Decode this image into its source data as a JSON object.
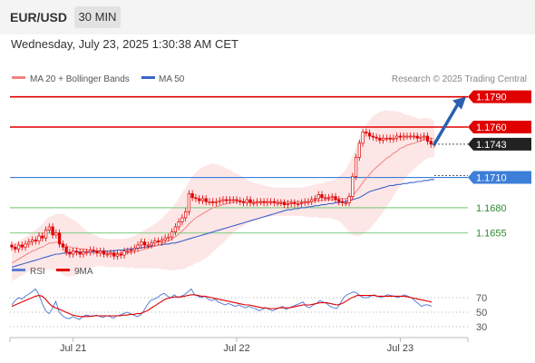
{
  "header": {
    "symbol": "EUR/USD",
    "timeframe": "30 MIN",
    "datetime": "Wednesday, July 23, 2025 1:30:38 AM CET"
  },
  "legend": {
    "ma20": "MA 20 + Bollinger Bands",
    "ma50": "MA 50",
    "credit": "Research © 2025 Trading Central"
  },
  "colors": {
    "resistance": "#e00000",
    "support": "#8ccf8c",
    "pivot": "#3c7ed8",
    "ma20": "#f08080",
    "ma50": "#3c64c8",
    "bollinger_fill": "#fde3e3",
    "candle": "#e00000",
    "last_price": "#222222"
  },
  "chart_data": [
    {
      "type": "candlestick",
      "title": "EUR/USD",
      "levels": [
        {
          "label": "1.1790",
          "value": 1.179,
          "kind": "resistance"
        },
        {
          "label": "1.1760",
          "value": 1.176,
          "kind": "resistance"
        },
        {
          "label": "1.1743",
          "value": 1.1743,
          "kind": "last"
        },
        {
          "label": "1.1710",
          "value": 1.171,
          "kind": "pivot"
        },
        {
          "label": "1.1680",
          "value": 1.168,
          "kind": "support"
        },
        {
          "label": "1.1655",
          "value": 1.1655,
          "kind": "support"
        }
      ],
      "x_tick_labels": [
        "Jul 21",
        "Jul 22",
        "Jul 23"
      ],
      "x_tick_positions": [
        18,
        66,
        114
      ],
      "bar_count": 125,
      "ylim": [
        1.1625,
        1.1805
      ],
      "close": [
        1.1641,
        1.1639,
        1.1643,
        1.1641,
        1.1644,
        1.1646,
        1.1648,
        1.1647,
        1.1652,
        1.165,
        1.1658,
        1.1661,
        1.1653,
        1.1655,
        1.1644,
        1.1641,
        1.1636,
        1.1634,
        1.1637,
        1.1636,
        1.1634,
        1.1636,
        1.1636,
        1.1638,
        1.1637,
        1.1635,
        1.1637,
        1.1634,
        1.1634,
        1.1635,
        1.1632,
        1.1634,
        1.1633,
        1.1637,
        1.1637,
        1.1638,
        1.164,
        1.1643,
        1.1646,
        1.1643,
        1.1643,
        1.1645,
        1.1647,
        1.1646,
        1.1648,
        1.165,
        1.1651,
        1.1656,
        1.1661,
        1.1666,
        1.167,
        1.1676,
        1.1694,
        1.169,
        1.1689,
        1.1687,
        1.1689,
        1.1686,
        1.1686,
        1.1685,
        1.1686,
        1.1687,
        1.1688,
        1.1687,
        1.1688,
        1.1688,
        1.1687,
        1.1686,
        1.1685,
        1.1688,
        1.1685,
        1.1685,
        1.1686,
        1.1686,
        1.1685,
        1.1686,
        1.1686,
        1.1685,
        1.1685,
        1.1685,
        1.1683,
        1.1684,
        1.1685,
        1.1684,
        1.1684,
        1.1685,
        1.1686,
        1.1686,
        1.1688,
        1.1689,
        1.1693,
        1.169,
        1.169,
        1.169,
        1.1691,
        1.1688,
        1.1686,
        1.1685,
        1.1685,
        1.1691,
        1.1711,
        1.173,
        1.1744,
        1.1755,
        1.1754,
        1.1751,
        1.175,
        1.1749,
        1.1747,
        1.1749,
        1.1749,
        1.1748,
        1.1749,
        1.1751,
        1.175,
        1.1751,
        1.1751,
        1.1751,
        1.1751,
        1.1749,
        1.175,
        1.1751,
        1.1746,
        1.1743,
        1.1743
      ],
      "ma20": [
        1.1625,
        1.1627,
        1.1629,
        1.1631,
        1.1633,
        1.1635,
        1.1637,
        1.1638,
        1.164,
        1.1641,
        1.1643,
        1.1645,
        1.1645,
        1.1646,
        1.1645,
        1.1644,
        1.1642,
        1.1641,
        1.164,
        1.164,
        1.1639,
        1.1639,
        1.1638,
        1.1638,
        1.1637,
        1.1637,
        1.1636,
        1.1636,
        1.1635,
        1.1635,
        1.1635,
        1.1635,
        1.1635,
        1.1635,
        1.1635,
        1.1636,
        1.1636,
        1.1637,
        1.1638,
        1.1639,
        1.164,
        1.1641,
        1.1642,
        1.1643,
        1.1644,
        1.1646,
        1.1647,
        1.1649,
        1.1651,
        1.1654,
        1.1657,
        1.166,
        1.1664,
        1.1667,
        1.167,
        1.1672,
        1.1674,
        1.1676,
        1.1678,
        1.168,
        1.1681,
        1.1682,
        1.1683,
        1.1684,
        1.1685,
        1.1685,
        1.1686,
        1.1686,
        1.1686,
        1.1686,
        1.1686,
        1.1686,
        1.1686,
        1.1686,
        1.1686,
        1.1686,
        1.1686,
        1.1686,
        1.1686,
        1.1686,
        1.1686,
        1.1686,
        1.1686,
        1.1686,
        1.1686,
        1.1686,
        1.1686,
        1.1686,
        1.1686,
        1.1687,
        1.1687,
        1.1687,
        1.1688,
        1.1688,
        1.1688,
        1.1688,
        1.1689,
        1.1689,
        1.1689,
        1.169,
        1.1692,
        1.1696,
        1.17,
        1.1705,
        1.1709,
        1.1713,
        1.1717,
        1.172,
        1.1723,
        1.1726,
        1.1729,
        1.1731,
        1.1734,
        1.1736,
        1.1739,
        1.174,
        1.1742,
        1.1743,
        1.1744,
        1.1745,
        1.1746,
        1.1748,
        1.1749,
        1.1749,
        1.1748
      ],
      "ma50": [
        1.1621,
        1.1622,
        1.1623,
        1.1624,
        1.1625,
        1.1626,
        1.1627,
        1.1628,
        1.1629,
        1.163,
        1.1631,
        1.1632,
        1.1633,
        1.1634,
        1.1634,
        1.1635,
        1.1635,
        1.1635,
        1.1636,
        1.1636,
        1.1636,
        1.1636,
        1.1636,
        1.1636,
        1.1636,
        1.1637,
        1.1637,
        1.1637,
        1.1637,
        1.1637,
        1.1637,
        1.1638,
        1.1638,
        1.1638,
        1.1639,
        1.1639,
        1.1639,
        1.164,
        1.164,
        1.1641,
        1.1641,
        1.1642,
        1.1642,
        1.1643,
        1.1643,
        1.1644,
        1.1644,
        1.1645,
        1.1645,
        1.1646,
        1.1647,
        1.1648,
        1.1649,
        1.165,
        1.1651,
        1.1652,
        1.1653,
        1.1654,
        1.1655,
        1.1656,
        1.1657,
        1.1658,
        1.1659,
        1.166,
        1.1661,
        1.1662,
        1.1663,
        1.1664,
        1.1665,
        1.1666,
        1.1667,
        1.1668,
        1.1669,
        1.167,
        1.1671,
        1.1672,
        1.1673,
        1.1674,
        1.1675,
        1.1676,
        1.1677,
        1.1678,
        1.1678,
        1.1679,
        1.1679,
        1.168,
        1.168,
        1.1681,
        1.1681,
        1.1682,
        1.1682,
        1.1683,
        1.1683,
        1.1684,
        1.1684,
        1.1685,
        1.1685,
        1.1686,
        1.1686,
        1.1687,
        1.1688,
        1.1689,
        1.169,
        1.1692,
        1.1694,
        1.1696,
        1.1697,
        1.1698,
        1.1699,
        1.17,
        1.1701,
        1.1702,
        1.1702,
        1.1703,
        1.1703,
        1.1704,
        1.1704,
        1.1705,
        1.1705,
        1.1706,
        1.1706,
        1.1707,
        1.1707,
        1.1708,
        1.1708
      ],
      "bollinger_width": [
        0.0018,
        0.0018,
        0.0018,
        0.0018,
        0.0018,
        0.0018,
        0.0019,
        0.002,
        0.0021,
        0.0023,
        0.0025,
        0.0026,
        0.0027,
        0.0028,
        0.0029,
        0.003,
        0.003,
        0.0029,
        0.0028,
        0.0026,
        0.0024,
        0.0021,
        0.0019,
        0.0017,
        0.0016,
        0.0015,
        0.0014,
        0.0014,
        0.0014,
        0.0014,
        0.0014,
        0.0014,
        0.0014,
        0.0014,
        0.0015,
        0.0015,
        0.0016,
        0.0017,
        0.0018,
        0.0019,
        0.002,
        0.0021,
        0.0022,
        0.0023,
        0.0025,
        0.0027,
        0.0029,
        0.0031,
        0.0033,
        0.0035,
        0.0038,
        0.004,
        0.0042,
        0.0044,
        0.0045,
        0.0046,
        0.0046,
        0.0046,
        0.0045,
        0.0044,
        0.0042,
        0.004,
        0.0038,
        0.0035,
        0.0033,
        0.003,
        0.0028,
        0.0026,
        0.0024,
        0.0022,
        0.002,
        0.0019,
        0.0018,
        0.0017,
        0.0016,
        0.0015,
        0.0015,
        0.0014,
        0.0014,
        0.0014,
        0.0014,
        0.0014,
        0.0014,
        0.0014,
        0.0014,
        0.0014,
        0.0015,
        0.0015,
        0.0016,
        0.0016,
        0.0017,
        0.0017,
        0.0018,
        0.0018,
        0.0019,
        0.002,
        0.0022,
        0.0025,
        0.0029,
        0.0034,
        0.0039,
        0.0044,
        0.0048,
        0.0051,
        0.0053,
        0.0054,
        0.0054,
        0.0053,
        0.0052,
        0.005,
        0.0048,
        0.0045,
        0.0042,
        0.0039,
        0.0036,
        0.0033,
        0.003,
        0.0028,
        0.0026,
        0.0024,
        0.0022,
        0.0021,
        0.002,
        0.0019,
        0.0018
      ],
      "arrow_target": 1.179
    },
    {
      "type": "line",
      "title": "RSI",
      "series": [
        {
          "name": "RSI",
          "color": "#5a7fd6"
        },
        {
          "name": "9MA",
          "color": "#e00000"
        }
      ],
      "y_ticks": [
        70,
        50,
        30
      ],
      "ylim": [
        20,
        85
      ],
      "rsi": [
        60,
        66,
        70,
        68,
        72,
        75,
        78,
        82,
        74,
        62,
        52,
        48,
        55,
        65,
        50,
        45,
        42,
        41,
        44,
        42,
        40,
        44,
        46,
        45,
        44,
        46,
        44,
        43,
        45,
        44,
        42,
        45,
        46,
        48,
        50,
        48,
        46,
        44,
        46,
        52,
        60,
        66,
        68,
        70,
        74,
        76,
        72,
        70,
        74,
        70,
        72,
        74,
        78,
        82,
        74,
        72,
        70,
        72,
        68,
        66,
        68,
        64,
        62,
        60,
        62,
        60,
        58,
        60,
        58,
        56,
        58,
        56,
        55,
        52,
        54,
        56,
        54,
        52,
        54,
        56,
        58,
        54,
        56,
        58,
        60,
        62,
        64,
        58,
        56,
        60,
        62,
        66,
        64,
        62,
        58,
        56,
        55,
        62,
        70,
        74,
        76,
        78,
        76,
        72,
        70,
        70,
        72,
        74,
        72,
        70,
        72,
        74,
        73,
        72,
        70,
        72,
        74,
        72,
        70,
        66,
        62,
        58,
        60,
        60,
        58
      ],
      "ma9": [
        58,
        60,
        62,
        64,
        66,
        68,
        70,
        72,
        73,
        72,
        68,
        62,
        58,
        56,
        54,
        52,
        50,
        48,
        46,
        45,
        44,
        44,
        44,
        44,
        45,
        45,
        45,
        45,
        45,
        45,
        45,
        45,
        45,
        46,
        46,
        47,
        47,
        48,
        48,
        50,
        52,
        55,
        58,
        61,
        64,
        67,
        69,
        70,
        71,
        71,
        71,
        72,
        73,
        74,
        74,
        73,
        72,
        72,
        71,
        70,
        69,
        68,
        67,
        66,
        65,
        64,
        63,
        62,
        61,
        60,
        60,
        59,
        58,
        57,
        56,
        56,
        55,
        55,
        55,
        56,
        56,
        56,
        56,
        57,
        58,
        59,
        60,
        60,
        60,
        61,
        62,
        63,
        63,
        63,
        62,
        61,
        60,
        61,
        63,
        66,
        69,
        71,
        73,
        73,
        73,
        73,
        73,
        73,
        72,
        72,
        72,
        72,
        72,
        72,
        72,
        72,
        72,
        71,
        70,
        69,
        68,
        67,
        66,
        65,
        64
      ]
    }
  ]
}
